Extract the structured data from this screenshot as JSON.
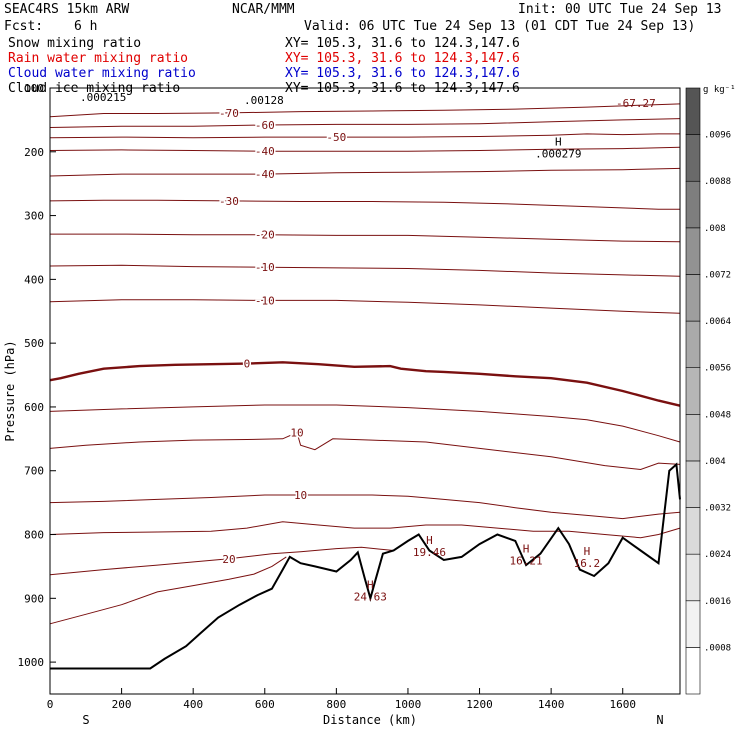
{
  "header": {
    "model": "SEAC4RS 15km ARW",
    "center": "NCAR/MMM",
    "init": "Init: 00 UTC Tue 24 Sep 13",
    "fcst_label": "Fcst:",
    "fcst_value": "6 h",
    "valid": "Valid: 06 UTC Tue 24 Sep 13 (01 CDT Tue 24 Sep 13)"
  },
  "fields": [
    {
      "label": "Snow mixing ratio",
      "xy": "XY= 105.3, 31.6 to 124.3,147.6",
      "color": "#000000"
    },
    {
      "label": "Rain water mixing ratio",
      "xy": "XY= 105.3, 31.6 to 124.3,147.6",
      "color": "#e00000"
    },
    {
      "label": "Cloud water mixing ratio",
      "xy": "XY= 105.3, 31.6 to 124.3,147.6",
      "color": "#0000cc"
    },
    {
      "label": "Cloud ice mixing ratio",
      "xy": "XY= 105.3, 31.6 to 124.3,147.6",
      "color": "#000000"
    }
  ],
  "chart_data": {
    "type": "line",
    "xlabel": "Distance (km)",
    "ylabel": "Pressure (hPa)",
    "xlim": [
      0,
      1760
    ],
    "ylim": [
      1050,
      100
    ],
    "x_ticks": [
      0,
      200,
      400,
      600,
      800,
      1000,
      1200,
      1400,
      1600
    ],
    "y_ticks": [
      100,
      200,
      300,
      400,
      500,
      600,
      700,
      800,
      900,
      1000
    ],
    "y_tick_labels": [
      "100",
      "200",
      "300",
      "400",
      "500",
      "600",
      "700",
      "800",
      "900",
      "1000"
    ],
    "left_end_label": "S",
    "right_end_label": "N",
    "colorbar_unit": "g kg⁻¹",
    "colorbar_ticks": [
      ".0008",
      ".0016",
      ".0024",
      ".0032",
      ".004",
      ".0048",
      ".0056",
      ".0064",
      ".0072",
      ".008",
      ".0088",
      ".0096"
    ],
    "colorbar_colors": [
      "#ffffff",
      "#f2f2f2",
      "#e6e6e6",
      "#dadada",
      "#cecece",
      "#c2c2c2",
      "#b6b6b6",
      "#aaaaaa",
      "#9e9e9e",
      "#929292",
      "#7e7e7e",
      "#6a6a6a",
      "#555555"
    ],
    "temperature_contours": [
      {
        "label": "-70",
        "bold": false,
        "points": [
          [
            0,
            145
          ],
          [
            150,
            140
          ],
          [
            300,
            140
          ],
          [
            500,
            139
          ],
          [
            700,
            137
          ],
          [
            900,
            136
          ],
          [
            1100,
            135
          ],
          [
            1300,
            133
          ],
          [
            1500,
            130
          ],
          [
            1700,
            126
          ],
          [
            1760,
            125
          ]
        ]
      },
      {
        "label": "-60",
        "bold": false,
        "points": [
          [
            0,
            162
          ],
          [
            200,
            160
          ],
          [
            400,
            160
          ],
          [
            600,
            158
          ],
          [
            800,
            157
          ],
          [
            1000,
            157
          ],
          [
            1200,
            156
          ],
          [
            1400,
            153
          ],
          [
            1600,
            150
          ],
          [
            1760,
            148
          ]
        ]
      },
      {
        "label": "-50",
        "bold": false,
        "points": [
          [
            0,
            178
          ],
          [
            200,
            177
          ],
          [
            400,
            178
          ],
          [
            600,
            177
          ],
          [
            800,
            177
          ],
          [
            1000,
            177
          ],
          [
            1200,
            176
          ],
          [
            1400,
            174
          ],
          [
            1500,
            172
          ],
          [
            1600,
            173
          ],
          [
            1700,
            172
          ],
          [
            1760,
            172
          ]
        ]
      },
      {
        "label": "-40",
        "bold": false,
        "points": [
          [
            0,
            198
          ],
          [
            200,
            197
          ],
          [
            400,
            198
          ],
          [
            600,
            199
          ],
          [
            800,
            199
          ],
          [
            1000,
            199
          ],
          [
            1200,
            198
          ],
          [
            1400,
            196
          ],
          [
            1600,
            195
          ],
          [
            1760,
            193
          ]
        ]
      },
      {
        "label": "-40",
        "bold": false,
        "points": [
          [
            0,
            238
          ],
          [
            200,
            235
          ],
          [
            400,
            235
          ],
          [
            600,
            235
          ],
          [
            800,
            233
          ],
          [
            1000,
            232
          ],
          [
            1200,
            231
          ],
          [
            1400,
            229
          ],
          [
            1600,
            228
          ],
          [
            1760,
            226
          ]
        ]
      },
      {
        "label": "-30",
        "bold": false,
        "points": [
          [
            0,
            277
          ],
          [
            150,
            276
          ],
          [
            300,
            276
          ],
          [
            500,
            277
          ],
          [
            700,
            278
          ],
          [
            900,
            278
          ],
          [
            1100,
            279
          ],
          [
            1300,
            282
          ],
          [
            1500,
            286
          ],
          [
            1700,
            290
          ],
          [
            1760,
            290
          ]
        ]
      },
      {
        "label": "-20",
        "bold": false,
        "points": [
          [
            0,
            329
          ],
          [
            200,
            329
          ],
          [
            400,
            330
          ],
          [
            600,
            330
          ],
          [
            800,
            331
          ],
          [
            1000,
            331
          ],
          [
            1200,
            334
          ],
          [
            1400,
            337
          ],
          [
            1600,
            340
          ],
          [
            1760,
            341
          ]
        ]
      },
      {
        "label": "-10",
        "bold": false,
        "points": [
          [
            0,
            379
          ],
          [
            200,
            378
          ],
          [
            400,
            380
          ],
          [
            600,
            381
          ],
          [
            800,
            382
          ],
          [
            1000,
            383
          ],
          [
            1200,
            386
          ],
          [
            1400,
            390
          ],
          [
            1600,
            393
          ],
          [
            1760,
            395
          ]
        ]
      },
      {
        "label": "-10",
        "bold": false,
        "points": [
          [
            0,
            435
          ],
          [
            200,
            432
          ],
          [
            400,
            432
          ],
          [
            600,
            433
          ],
          [
            800,
            433
          ],
          [
            1000,
            436
          ],
          [
            1200,
            440
          ],
          [
            1400,
            445
          ],
          [
            1600,
            450
          ],
          [
            1760,
            453
          ]
        ]
      },
      {
        "label": "0",
        "bold": true,
        "points": [
          [
            0,
            558
          ],
          [
            30,
            555
          ],
          [
            80,
            548
          ],
          [
            150,
            540
          ],
          [
            250,
            536
          ],
          [
            350,
            534
          ],
          [
            450,
            533
          ],
          [
            550,
            532
          ],
          [
            650,
            530
          ],
          [
            750,
            533
          ],
          [
            850,
            537
          ],
          [
            950,
            536
          ],
          [
            980,
            540
          ],
          [
            1050,
            544
          ],
          [
            1100,
            545
          ],
          [
            1200,
            548
          ],
          [
            1300,
            552
          ],
          [
            1400,
            555
          ],
          [
            1500,
            562
          ],
          [
            1600,
            575
          ],
          [
            1700,
            590
          ],
          [
            1760,
            598
          ]
        ]
      },
      {
        "label": "",
        "bold": false,
        "points": [
          [
            0,
            607
          ],
          [
            200,
            603
          ],
          [
            400,
            600
          ],
          [
            600,
            597
          ],
          [
            800,
            597
          ],
          [
            1000,
            601
          ],
          [
            1200,
            607
          ],
          [
            1400,
            615
          ],
          [
            1500,
            620
          ],
          [
            1600,
            630
          ],
          [
            1700,
            645
          ],
          [
            1760,
            655
          ]
        ]
      },
      {
        "label": "10",
        "bold": false,
        "points": [
          [
            0,
            665
          ],
          [
            100,
            660
          ],
          [
            250,
            655
          ],
          [
            400,
            652
          ],
          [
            550,
            651
          ],
          [
            650,
            650
          ],
          [
            690,
            640
          ],
          [
            700,
            660
          ],
          [
            740,
            667
          ],
          [
            790,
            650
          ],
          [
            900,
            652
          ],
          [
            1050,
            655
          ],
          [
            1200,
            665
          ],
          [
            1400,
            678
          ],
          [
            1550,
            692
          ],
          [
            1650,
            698
          ],
          [
            1700,
            688
          ],
          [
            1760,
            690
          ]
        ]
      },
      {
        "label": "10",
        "bold": false,
        "points": [
          [
            0,
            750
          ],
          [
            150,
            748
          ],
          [
            300,
            745
          ],
          [
            450,
            742
          ],
          [
            600,
            738
          ],
          [
            700,
            738
          ],
          [
            800,
            738
          ],
          [
            900,
            738
          ],
          [
            1000,
            740
          ],
          [
            1100,
            745
          ],
          [
            1200,
            750
          ],
          [
            1300,
            758
          ],
          [
            1400,
            765
          ],
          [
            1500,
            770
          ],
          [
            1600,
            775
          ],
          [
            1700,
            768
          ],
          [
            1760,
            765
          ]
        ]
      },
      {
        "label": "",
        "bold": false,
        "points": [
          [
            0,
            800
          ],
          [
            150,
            797
          ],
          [
            300,
            796
          ],
          [
            450,
            795
          ],
          [
            550,
            790
          ],
          [
            650,
            780
          ],
          [
            750,
            785
          ],
          [
            850,
            790
          ],
          [
            950,
            790
          ],
          [
            1050,
            785
          ],
          [
            1150,
            785
          ],
          [
            1250,
            790
          ],
          [
            1350,
            795
          ],
          [
            1450,
            795
          ],
          [
            1550,
            800
          ],
          [
            1650,
            805
          ],
          [
            1700,
            800
          ],
          [
            1760,
            790
          ]
        ]
      },
      {
        "label": "20",
        "bold": false,
        "points": [
          [
            0,
            863
          ],
          [
            150,
            855
          ],
          [
            300,
            848
          ],
          [
            500,
            838
          ],
          [
            620,
            830
          ],
          [
            700,
            827
          ],
          [
            800,
            822
          ],
          [
            870,
            820
          ],
          [
            960,
            825
          ]
        ]
      },
      {
        "label": "",
        "bold": false,
        "points": [
          [
            0,
            940
          ],
          [
            100,
            925
          ],
          [
            200,
            910
          ],
          [
            300,
            890
          ],
          [
            400,
            880
          ],
          [
            500,
            870
          ],
          [
            570,
            862
          ],
          [
            620,
            850
          ],
          [
            660,
            835
          ]
        ]
      }
    ],
    "terrain_surface_hpa": [
      [
        0,
        1010
      ],
      [
        280,
        1010
      ],
      [
        320,
        995
      ],
      [
        380,
        975
      ],
      [
        420,
        955
      ],
      [
        470,
        930
      ],
      [
        530,
        910
      ],
      [
        580,
        895
      ],
      [
        620,
        885
      ],
      [
        650,
        855
      ],
      [
        670,
        835
      ],
      [
        700,
        845
      ],
      [
        740,
        850
      ],
      [
        800,
        858
      ],
      [
        840,
        840
      ],
      [
        860,
        828
      ],
      [
        880,
        870
      ],
      [
        895,
        900
      ],
      [
        910,
        870
      ],
      [
        930,
        830
      ],
      [
        960,
        825
      ],
      [
        1000,
        810
      ],
      [
        1030,
        800
      ],
      [
        1060,
        825
      ],
      [
        1100,
        840
      ],
      [
        1150,
        835
      ],
      [
        1200,
        815
      ],
      [
        1250,
        800
      ],
      [
        1300,
        810
      ],
      [
        1330,
        848
      ],
      [
        1370,
        830
      ],
      [
        1420,
        790
      ],
      [
        1450,
        815
      ],
      [
        1480,
        855
      ],
      [
        1520,
        865
      ],
      [
        1560,
        845
      ],
      [
        1600,
        805
      ],
      [
        1650,
        825
      ],
      [
        1700,
        845
      ],
      [
        1730,
        700
      ],
      [
        1750,
        690
      ],
      [
        1760,
        745
      ]
    ],
    "highs": [
      {
        "label": "H",
        "value": "24.63",
        "x": 895,
        "p": 885
      },
      {
        "label": "H",
        "value": "19.46",
        "x": 1060,
        "p": 815
      },
      {
        "label": "H",
        "value": "16.21",
        "x": 1330,
        "p": 828
      },
      {
        "label": "H",
        "value": "16.2",
        "x": 1500,
        "p": 832
      },
      {
        "label": "H",
        "value": ".000279",
        "x": 1420,
        "p": 190
      }
    ],
    "annotations": [
      ".000215",
      ".00128",
      "-67.27"
    ]
  }
}
